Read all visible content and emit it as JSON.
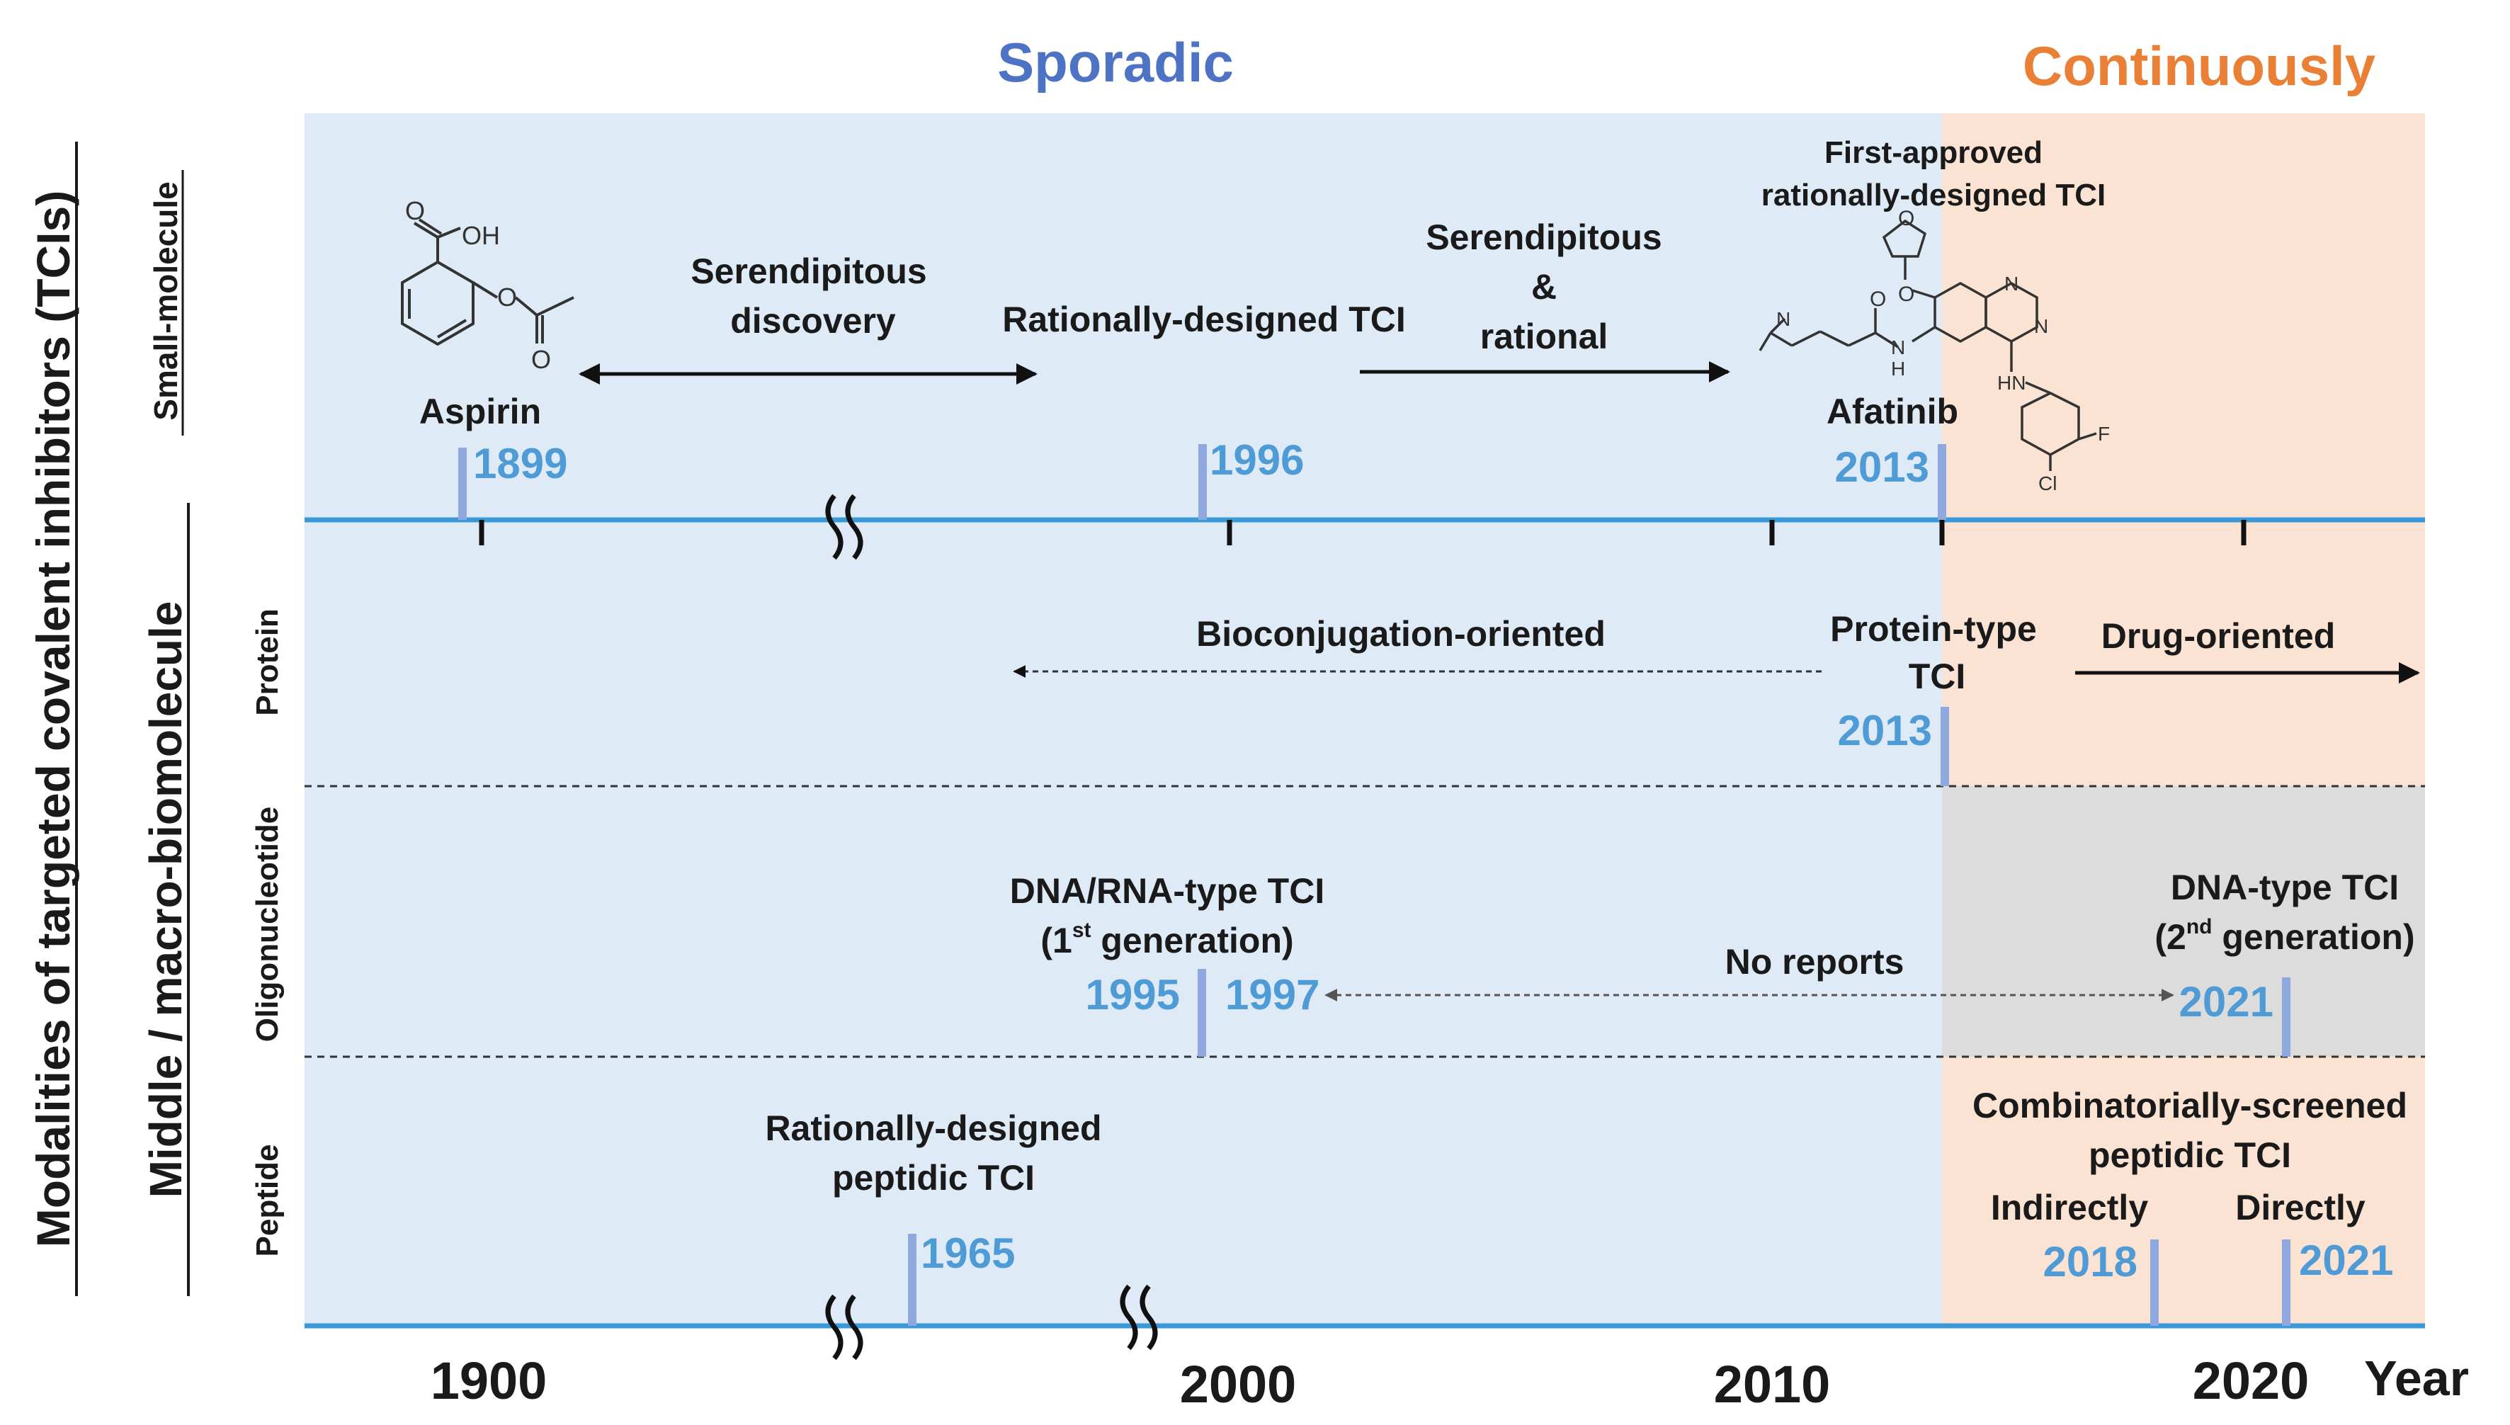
{
  "eras": {
    "sporadic": "Sporadic",
    "continuously": "Continuously"
  },
  "axis": {
    "title_main": "Modalities of targeted covalent inhibitors (TCIs)",
    "title_sub": "Middle / macro-biomolecule",
    "tick_labels": [
      "1900",
      "2000",
      "2010",
      "2020"
    ],
    "year_label": "Year"
  },
  "rows": {
    "small_molecule": "Small-molecule",
    "protein": "Protein",
    "oligonucleotide": "Oligonucleotide",
    "peptide": "Peptide"
  },
  "small_molecule": {
    "aspirin_label": "Aspirin",
    "aspirin_year": "1899",
    "serendipitous_discovery_1": "Serendipitous",
    "serendipitous_discovery_2": "discovery",
    "rational_label": "Rationally-designed TCI",
    "rational_year": "1996",
    "mixed_1": "Serendipitous",
    "mixed_2": "&",
    "mixed_3": "rational",
    "first_approved_1": "First-approved",
    "first_approved_2": "rationally-designed TCI",
    "afatinib_label": "Afatinib",
    "afatinib_year": "2013"
  },
  "chem_labels": {
    "aspirin_o1": "O",
    "aspirin_oh": "OH",
    "aspirin_o2": "O",
    "aspirin_o3": "O",
    "afatinib_o1": "O",
    "afatinib_o2": "O",
    "afatinib_o3": "O",
    "afatinib_n1": "N",
    "afatinib_n2": "N",
    "afatinib_n3": "N",
    "afatinib_nh": "N",
    "afatinib_h": "H",
    "afatinib_hn": "HN",
    "afatinib_cl": "Cl",
    "afatinib_f": "F"
  },
  "protein": {
    "bioconjugation": "Bioconjugation-oriented",
    "protein_tci_1": "Protein-type",
    "protein_tci_2": "TCI",
    "year": "2013",
    "drug_oriented": "Drug-oriented"
  },
  "oligonucleotide": {
    "gen1_line1": "DNA/RNA-type TCI",
    "gen1_open": "(1",
    "gen1_sup": "st",
    "gen1_rest": " generation)",
    "year_1995": "1995",
    "year_1997": "1997",
    "no_reports": "No reports",
    "gen2_line1": "DNA-type TCI",
    "gen2_open": "(2",
    "gen2_sup": "nd",
    "gen2_rest": " generation)",
    "year_2021": "2021"
  },
  "peptide": {
    "rational_1": "Rationally-designed",
    "rational_2": "peptidic TCI",
    "year_1965": "1965",
    "combi_1": "Combinatorially-screened",
    "combi_2": "peptidic TCI",
    "indirectly": "Indirectly",
    "directly": "Directly",
    "year_2018": "2018",
    "year_2021": "2021"
  },
  "colors": {
    "sporadic_bg": "#deeaf6",
    "continuous_bg": "#fbe3d4",
    "gray_bg": "#dcdcdc",
    "axis_line": "#3a9ad9",
    "year_text": "#4e9bd6",
    "marker": "#8fa8de",
    "sporadic_title": "#4f73c4",
    "continuous_title": "#ea7f36"
  }
}
